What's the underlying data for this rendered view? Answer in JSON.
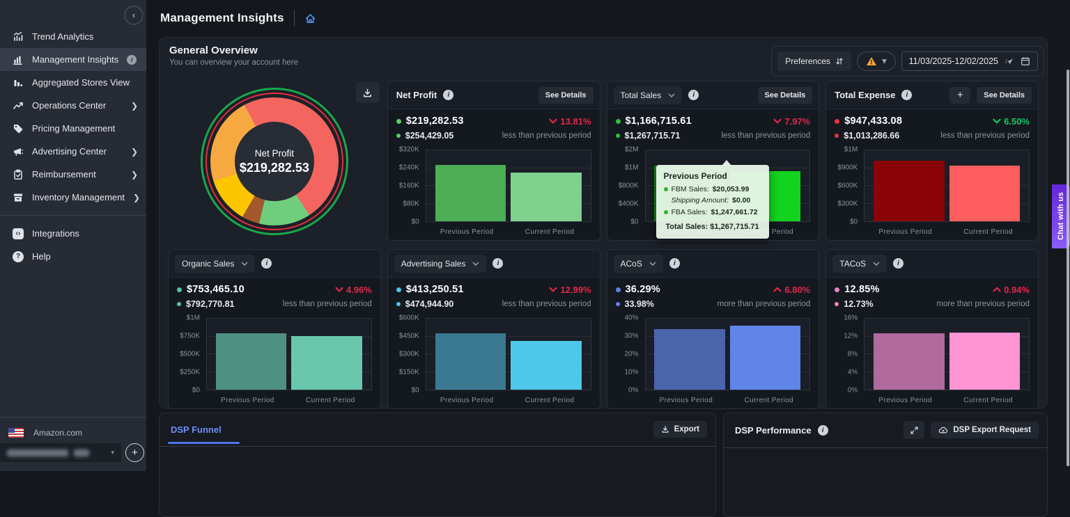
{
  "app": {
    "chat_label": "Chat with us"
  },
  "header": {
    "title": "Management Insights"
  },
  "sidebar": {
    "items": [
      {
        "label": "Trend Analytics",
        "active": false,
        "chevron": false,
        "info": false
      },
      {
        "label": "Management Insights",
        "active": true,
        "chevron": false,
        "info": true
      },
      {
        "label": "Aggregated Stores View",
        "active": false,
        "chevron": false,
        "info": false
      },
      {
        "label": "Operations Center",
        "active": false,
        "chevron": true,
        "info": false
      },
      {
        "label": "Pricing Management",
        "active": false,
        "chevron": false,
        "info": false
      },
      {
        "label": "Advertising Center",
        "active": false,
        "chevron": true,
        "info": false
      },
      {
        "label": "Reimbursement",
        "active": false,
        "chevron": true,
        "info": false
      },
      {
        "label": "Inventory Management",
        "active": false,
        "chevron": true,
        "info": false
      }
    ],
    "secondary_items": [
      {
        "label": "Integrations"
      },
      {
        "label": "Help"
      }
    ],
    "marketplace_label": "Amazon.com"
  },
  "overview": {
    "title": "General Overview",
    "subtitle": "You can overview your account here",
    "preferences_label": "Preferences",
    "date_range_value": "11/03/2025-12/02/2025"
  },
  "donut": {
    "center_label": "Net Profit",
    "center_value": "$219,282.53",
    "start_deg": -28,
    "outer_ring_color": "#17a94c",
    "inner_ring_color": "#e62e3e",
    "segments": [
      {
        "name": "red",
        "color": "#f4655f",
        "deg": 175
      },
      {
        "name": "green",
        "color": "#6fce7e",
        "deg": 47
      },
      {
        "name": "brown",
        "color": "#a3592b",
        "deg": 16
      },
      {
        "name": "yellow",
        "color": "#fdc500",
        "deg": 42
      },
      {
        "name": "orange",
        "color": "#f7a941",
        "deg": 80
      }
    ]
  },
  "periods": [
    "Previous Period",
    "Current Period"
  ],
  "see_details_label": "See Details",
  "cards": [
    {
      "title": "Net Profit",
      "dropdown": false,
      "see_details": true,
      "plus_button": false,
      "current": "$219,282.53",
      "previous": "$254,429.05",
      "change": "13.81%",
      "direction": "down",
      "change_color": "#e0284b",
      "subtext": "less than previous period",
      "dot_color": "#57cf63",
      "y_ticks": [
        "$0",
        "$80K",
        "$160K",
        "$240K",
        "$320K"
      ],
      "bars": {
        "prev_color": "#4cae55",
        "curr_color": "#7fd18d",
        "prev_frac": 0.795,
        "curr_frac": 0.685
      }
    },
    {
      "title": "Total Sales",
      "dropdown": true,
      "see_details": true,
      "plus_button": false,
      "current": "$1,166,715.61",
      "previous": "$1,267,715.71",
      "change": "7.97%",
      "direction": "down",
      "change_color": "#e0284b",
      "subtext": "less than previous period",
      "dot_color": "#2fc234",
      "y_ticks": [
        "$0",
        "$400K",
        "$800K",
        "$1M",
        "$2M"
      ],
      "bars": {
        "prev_color": "#0a8a10",
        "curr_color": "#12d41e",
        "prev_frac": 0.78,
        "curr_frac": 0.71
      },
      "tooltip": {
        "title": "Previous Period",
        "rows": [
          {
            "label": "FBM Sales:",
            "value": "$20,053.99",
            "bullet": true,
            "italic": false
          },
          {
            "label": "Shipping Amount:",
            "value": "$0.00",
            "bullet": false,
            "italic": true
          },
          {
            "label": "FBA Sales:",
            "value": "$1,247,661.72",
            "bullet": true,
            "italic": false
          }
        ],
        "total_label": "Total Sales:",
        "total_value": "$1,267,715.71"
      }
    },
    {
      "title": "Total Expense",
      "dropdown": false,
      "see_details": true,
      "plus_button": true,
      "current": "$947,433.08",
      "previous": "$1,013,286.66",
      "change": "6.50%",
      "direction": "down",
      "change_color": "#17c964",
      "subtext": "less than previous period",
      "dot_color": "#e73440",
      "y_ticks": [
        "$0",
        "$300K",
        "$600K",
        "$900K",
        "$1M"
      ],
      "bars": {
        "prev_color": "#8a0309",
        "curr_color": "#ff5e5e",
        "prev_frac": 0.85,
        "curr_frac": 0.787
      }
    },
    {
      "title": "Organic Sales",
      "dropdown": true,
      "see_details": false,
      "plus_button": false,
      "current": "$753,465.10",
      "previous": "$792,770.81",
      "change": "4.96%",
      "direction": "down",
      "change_color": "#e0284b",
      "subtext": "less than previous period",
      "dot_color": "#56c4a3",
      "y_ticks": [
        "$0",
        "$250K",
        "$500K",
        "$750K",
        "$1M"
      ],
      "bars": {
        "prev_color": "#4e9181",
        "curr_color": "#69c8ab",
        "prev_frac": 0.793,
        "curr_frac": 0.753
      }
    },
    {
      "title": "Advertising Sales",
      "dropdown": true,
      "see_details": false,
      "plus_button": false,
      "current": "$413,250.51",
      "previous": "$474,944.90",
      "change": "12.99%",
      "direction": "down",
      "change_color": "#e0284b",
      "subtext": "less than previous period",
      "dot_color": "#4cc6ea",
      "y_ticks": [
        "$0",
        "$150K",
        "$300K",
        "$450K",
        "$600K"
      ],
      "bars": {
        "prev_color": "#3a7991",
        "curr_color": "#4fc7e9",
        "prev_frac": 0.792,
        "curr_frac": 0.689
      }
    },
    {
      "title": "ACoS",
      "dropdown": true,
      "see_details": false,
      "plus_button": false,
      "current": "36.29%",
      "previous": "33.98%",
      "change": "6.80%",
      "direction": "up",
      "change_color": "#e0284b",
      "subtext": "more than previous period",
      "dot_color": "#5f82e9",
      "y_ticks": [
        "0%",
        "10%",
        "20%",
        "30%",
        "40%"
      ],
      "bars": {
        "prev_color": "#4a65ac",
        "curr_color": "#5f85e9",
        "prev_frac": 0.85,
        "curr_frac": 0.907
      }
    },
    {
      "title": "TACoS",
      "dropdown": true,
      "see_details": false,
      "plus_button": false,
      "current": "12.85%",
      "previous": "12.73%",
      "change": "0.94%",
      "direction": "up",
      "change_color": "#e0284b",
      "subtext": "more than previous period",
      "dot_color": "#ee84c6",
      "y_ticks": [
        "0%",
        "4%",
        "8%",
        "12%",
        "16%"
      ],
      "bars": {
        "prev_color": "#b06a9b",
        "curr_color": "#ff93d4",
        "prev_frac": 0.795,
        "curr_frac": 0.803
      }
    }
  ],
  "dsp_funnel": {
    "tab_label": "DSP Funnel",
    "export_label": "Export"
  },
  "dsp_performance": {
    "title": "DSP Performance",
    "export_label": "DSP Export Request"
  }
}
